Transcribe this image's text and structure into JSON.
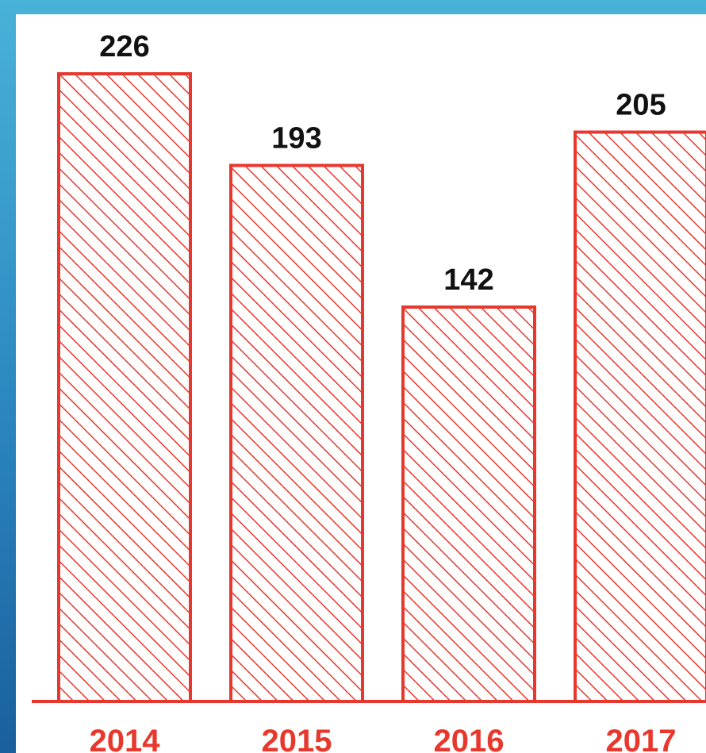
{
  "chart_data": {
    "type": "bar",
    "categories": [
      "2014",
      "2015",
      "2016",
      "2017"
    ],
    "values": [
      226,
      193,
      142,
      205
    ],
    "value_labels": [
      "226",
      "193",
      "142",
      "205"
    ],
    "ylim": [
      0,
      226
    ],
    "grid": false,
    "legend": "none"
  },
  "colors": {
    "bar_stroke": "#e8382d",
    "bar_hatch": "#e8382d",
    "baseline": "#e8382d",
    "category_text": "#e8382d",
    "value_text": "#111111",
    "panel_bg": "#ffffff",
    "frame_bg": "#3fa2d1"
  }
}
